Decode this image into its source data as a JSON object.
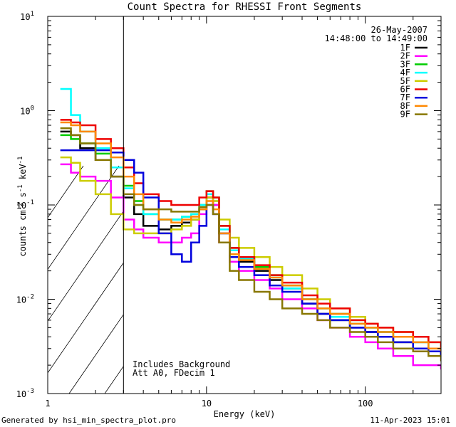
{
  "chart_data": {
    "type": "line",
    "title": "Count Spectra for RHESSI Front Segments",
    "xlabel": "Energy (keV)",
    "ylabel": "counts cm-2 s-1 keV-1",
    "x_scale": "log",
    "y_scale": "log",
    "xlim": [
      1,
      300
    ],
    "ylim": [
      0.001,
      10
    ],
    "x_ticks": [
      {
        "value": 1,
        "label": "1"
      },
      {
        "value": 10,
        "label": "10"
      },
      {
        "value": 100,
        "label": "100"
      }
    ],
    "y_ticks": [
      {
        "value": 10,
        "base": "10",
        "exp": "1"
      },
      {
        "value": 1,
        "base": "10",
        "exp": "0"
      },
      {
        "value": 0.1,
        "base": "10",
        "exp": "-1"
      },
      {
        "value": 0.01,
        "base": "10",
        "exp": "-2"
      },
      {
        "value": 0.001,
        "base": "10",
        "exp": "-3"
      }
    ],
    "hatched_region_xmax": 3,
    "date": "26-May-2007",
    "time_range": "14:48:00 to 14:49:00",
    "annotations": [
      "Includes Background",
      "Att A0, FDecim 1"
    ],
    "footer_left": "Generated by hsi_min_spectra_plot.pro",
    "footer_right": "11-Apr-2023 15:01",
    "series": [
      {
        "name": "1F",
        "color": "#000000",
        "x": [
          1.2,
          1.4,
          1.6,
          2,
          2.5,
          3,
          3.5,
          4,
          5,
          6,
          7,
          8,
          9,
          10,
          11,
          12,
          14,
          16,
          20,
          25,
          30,
          40,
          50,
          60,
          80,
          100,
          120,
          150,
          200,
          250,
          300
        ],
        "y": [
          0.6,
          0.55,
          0.4,
          0.3,
          0.2,
          0.12,
          0.08,
          0.06,
          0.055,
          0.06,
          0.065,
          0.07,
          0.09,
          0.12,
          0.1,
          0.05,
          0.03,
          0.025,
          0.02,
          0.016,
          0.013,
          0.009,
          0.007,
          0.006,
          0.005,
          0.0045,
          0.004,
          0.0035,
          0.003,
          0.003,
          0.0025
        ]
      },
      {
        "name": "2F",
        "color": "#ff00ff",
        "x": [
          1.2,
          1.4,
          1.6,
          2,
          2.5,
          3,
          3.5,
          4,
          5,
          6,
          7,
          8,
          9,
          10,
          11,
          12,
          14,
          16,
          20,
          25,
          30,
          40,
          50,
          60,
          80,
          100,
          120,
          150,
          200,
          250,
          300
        ],
        "y": [
          0.27,
          0.22,
          0.2,
          0.18,
          0.12,
          0.07,
          0.055,
          0.045,
          0.04,
          0.04,
          0.045,
          0.05,
          0.08,
          0.12,
          0.1,
          0.04,
          0.025,
          0.02,
          0.016,
          0.013,
          0.01,
          0.008,
          0.006,
          0.005,
          0.004,
          0.0035,
          0.003,
          0.0025,
          0.002,
          0.002,
          0.0018
        ]
      },
      {
        "name": "3F",
        "color": "#00cc00",
        "x": [
          1.2,
          1.4,
          1.6,
          2,
          2.5,
          3,
          3.5,
          4,
          5,
          6,
          7,
          8,
          9,
          10,
          11,
          12,
          14,
          16,
          20,
          25,
          30,
          40,
          50,
          60,
          80,
          100,
          120,
          150,
          200,
          250,
          300
        ],
        "y": [
          0.55,
          0.5,
          0.45,
          0.35,
          0.25,
          0.16,
          0.11,
          0.08,
          0.07,
          0.07,
          0.075,
          0.08,
          0.1,
          0.14,
          0.12,
          0.06,
          0.035,
          0.028,
          0.022,
          0.018,
          0.014,
          0.01,
          0.008,
          0.007,
          0.006,
          0.005,
          0.0045,
          0.004,
          0.0035,
          0.003,
          0.0028
        ]
      },
      {
        "name": "4F",
        "color": "#00ffff",
        "x": [
          1.2,
          1.4,
          1.6,
          2,
          2.5,
          3,
          3.5,
          4,
          5,
          6,
          7,
          8,
          9,
          10,
          11,
          12,
          14,
          16,
          20,
          25,
          30,
          40,
          50,
          60,
          80,
          100,
          120,
          150,
          200,
          250,
          300
        ],
        "y": [
          1.7,
          0.9,
          0.6,
          0.4,
          0.25,
          0.15,
          0.1,
          0.08,
          0.07,
          0.07,
          0.075,
          0.08,
          0.1,
          0.13,
          0.11,
          0.055,
          0.033,
          0.027,
          0.021,
          0.017,
          0.013,
          0.01,
          0.008,
          0.0065,
          0.0055,
          0.005,
          0.0045,
          0.004,
          0.0035,
          0.003,
          0.0028
        ]
      },
      {
        "name": "5F",
        "color": "#cccc00",
        "x": [
          1.2,
          1.4,
          1.6,
          2,
          2.5,
          3,
          3.5,
          4,
          5,
          6,
          7,
          8,
          9,
          10,
          11,
          12,
          14,
          16,
          20,
          25,
          30,
          40,
          50,
          60,
          80,
          100,
          120,
          150,
          200,
          250,
          300
        ],
        "y": [
          0.32,
          0.28,
          0.18,
          0.13,
          0.08,
          0.055,
          0.05,
          0.05,
          0.05,
          0.055,
          0.06,
          0.07,
          0.09,
          0.12,
          0.11,
          0.07,
          0.045,
          0.035,
          0.028,
          0.022,
          0.018,
          0.013,
          0.01,
          0.008,
          0.0065,
          0.0055,
          0.005,
          0.0045,
          0.004,
          0.0035,
          0.003
        ]
      },
      {
        "name": "6F",
        "color": "#ee0000",
        "x": [
          1.2,
          1.4,
          1.6,
          2,
          2.5,
          3,
          3.5,
          4,
          5,
          6,
          7,
          8,
          9,
          10,
          11,
          12,
          14,
          16,
          20,
          25,
          30,
          40,
          50,
          60,
          80,
          100,
          120,
          150,
          200,
          250,
          300
        ],
        "y": [
          0.8,
          0.75,
          0.7,
          0.5,
          0.4,
          0.25,
          0.17,
          0.13,
          0.11,
          0.1,
          0.1,
          0.1,
          0.12,
          0.14,
          0.12,
          0.06,
          0.035,
          0.028,
          0.023,
          0.018,
          0.015,
          0.011,
          0.009,
          0.008,
          0.006,
          0.0055,
          0.005,
          0.0045,
          0.004,
          0.0035,
          0.003
        ]
      },
      {
        "name": "7F",
        "color": "#0000dd",
        "x": [
          1.2,
          1.4,
          1.6,
          2,
          2.5,
          3,
          3.5,
          4,
          5,
          6,
          7,
          8,
          9,
          10,
          11,
          12,
          14,
          16,
          20,
          25,
          30,
          40,
          50,
          60,
          80,
          100,
          120,
          150,
          200,
          250,
          300
        ],
        "y": [
          0.38,
          0.38,
          0.38,
          0.38,
          0.36,
          0.3,
          0.22,
          0.12,
          0.05,
          0.03,
          0.025,
          0.04,
          0.06,
          0.1,
          0.08,
          0.05,
          0.028,
          0.022,
          0.018,
          0.014,
          0.012,
          0.009,
          0.007,
          0.006,
          0.005,
          0.0045,
          0.004,
          0.0035,
          0.003,
          0.0028,
          0.0025
        ]
      },
      {
        "name": "8F",
        "color": "#ff8800",
        "x": [
          1.2,
          1.4,
          1.6,
          2,
          2.5,
          3,
          3.5,
          4,
          5,
          6,
          7,
          8,
          9,
          10,
          11,
          12,
          14,
          16,
          20,
          25,
          30,
          40,
          50,
          60,
          80,
          100,
          120,
          150,
          200,
          250,
          300
        ],
        "y": [
          0.75,
          0.7,
          0.6,
          0.45,
          0.32,
          0.2,
          0.13,
          0.09,
          0.07,
          0.065,
          0.07,
          0.075,
          0.09,
          0.11,
          0.09,
          0.05,
          0.03,
          0.026,
          0.021,
          0.017,
          0.014,
          0.01,
          0.008,
          0.007,
          0.0055,
          0.005,
          0.0045,
          0.004,
          0.0035,
          0.003,
          0.0028
        ]
      },
      {
        "name": "9F",
        "color": "#887700",
        "x": [
          1.2,
          1.4,
          1.6,
          2,
          2.5,
          3,
          3.5,
          4,
          5,
          6,
          7,
          8,
          9,
          10,
          11,
          12,
          14,
          16,
          20,
          25,
          30,
          40,
          50,
          60,
          80,
          100,
          120,
          150,
          200,
          250,
          300
        ],
        "y": [
          0.65,
          0.55,
          0.45,
          0.3,
          0.2,
          0.13,
          0.1,
          0.09,
          0.09,
          0.085,
          0.085,
          0.085,
          0.095,
          0.1,
          0.08,
          0.04,
          0.02,
          0.016,
          0.012,
          0.01,
          0.008,
          0.007,
          0.006,
          0.005,
          0.0045,
          0.004,
          0.0035,
          0.003,
          0.0028,
          0.0025,
          0.0022
        ]
      }
    ]
  }
}
